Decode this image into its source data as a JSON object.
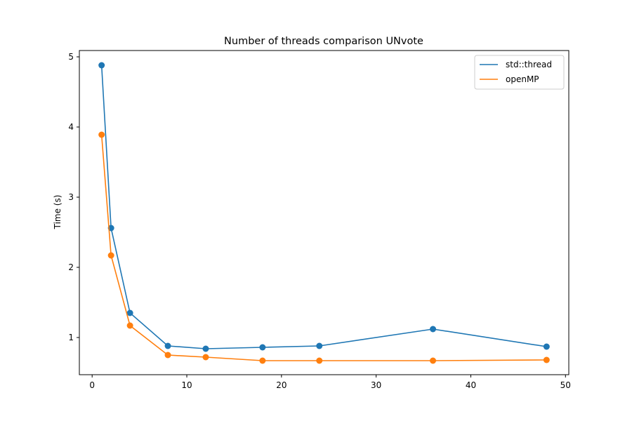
{
  "chart_data": {
    "type": "line",
    "title": "Number of threads comparison UNvote",
    "xlabel": "",
    "ylabel": "Time (s)",
    "xlim": [
      -1.35,
      50.35
    ],
    "ylim": [
      0.47,
      5.09
    ],
    "xticks": [
      0,
      10,
      20,
      30,
      40,
      50
    ],
    "yticks": [
      1,
      2,
      3,
      4,
      5
    ],
    "grid": false,
    "legend_position": "top-right",
    "x": [
      1,
      2,
      4,
      8,
      12,
      18,
      24,
      36,
      48
    ],
    "series": [
      {
        "name": "std::thread",
        "color": "#1f77b4",
        "values": [
          4.88,
          2.56,
          1.35,
          0.88,
          0.84,
          0.86,
          0.88,
          1.12,
          0.87
        ]
      },
      {
        "name": "openMP",
        "color": "#ff7f0e",
        "values": [
          3.89,
          2.17,
          1.17,
          0.75,
          0.72,
          0.67,
          0.67,
          0.67,
          0.68
        ]
      }
    ]
  }
}
